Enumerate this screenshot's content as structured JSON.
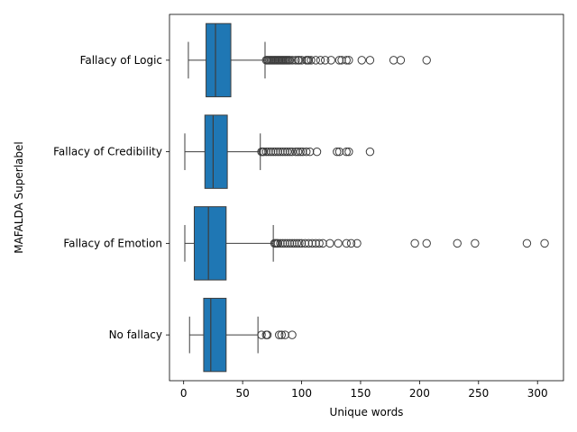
{
  "chart_data": {
    "type": "boxplot",
    "orientation": "horizontal",
    "xlabel": "Unique words",
    "ylabel": "MAFALDA Superlabel",
    "xlim": [
      -12,
      322
    ],
    "xticks": [
      0,
      50,
      100,
      150,
      200,
      250,
      300
    ],
    "grid": false,
    "box_color": "#1f77b4",
    "categories": [
      "Fallacy of Logic",
      "Fallacy of Credibility",
      "Fallacy of Emotion",
      "No fallacy"
    ],
    "boxes": [
      {
        "label": "Fallacy of Logic",
        "whisker_low": 4,
        "q1": 19,
        "median": 27,
        "q3": 40,
        "whisker_high": 69,
        "outliers": [
          70,
          71,
          72,
          73,
          74,
          75,
          76,
          77,
          78,
          79,
          80,
          81,
          82,
          83,
          84,
          85,
          86,
          87,
          88,
          89,
          90,
          92,
          95,
          97,
          98,
          100,
          104,
          105,
          106,
          108,
          112,
          116,
          120,
          125,
          132,
          134,
          138,
          140,
          151,
          158,
          178,
          184,
          206
        ]
      },
      {
        "label": "Fallacy of Credibility",
        "whisker_low": 1,
        "q1": 18,
        "median": 25,
        "q3": 37,
        "whisker_high": 65,
        "outliers": [
          66,
          67,
          68,
          70,
          72,
          74,
          76,
          78,
          80,
          82,
          84,
          86,
          88,
          90,
          92,
          95,
          97,
          99,
          101,
          104,
          107,
          113,
          130,
          132,
          138,
          140,
          158
        ]
      },
      {
        "label": "Fallacy of Emotion",
        "whisker_low": 1,
        "q1": 9,
        "median": 21,
        "q3": 36,
        "whisker_high": 76,
        "outliers": [
          77,
          78,
          79,
          80,
          82,
          84,
          86,
          88,
          90,
          92,
          94,
          96,
          98,
          100,
          103,
          106,
          109,
          112,
          115,
          118,
          124,
          131,
          138,
          142,
          147,
          196,
          206,
          232,
          247,
          291,
          306
        ]
      },
      {
        "label": "No fallacy",
        "whisker_low": 5,
        "q1": 17,
        "median": 23,
        "q3": 36,
        "whisker_high": 63,
        "outliers": [
          66,
          70,
          71,
          81,
          83,
          86,
          92
        ]
      }
    ]
  }
}
